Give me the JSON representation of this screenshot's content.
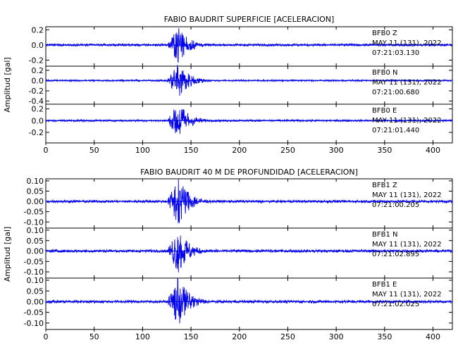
{
  "chart_data": [
    {
      "type": "line",
      "title": "FABIO BAUDRIT SUPERFICIE [ACELERACION]",
      "ylabel": "Amplitud [gal]",
      "xlim": [
        0,
        420
      ],
      "xticks": [
        "0",
        "50",
        "100",
        "150",
        "200",
        "250",
        "300",
        "350",
        "400"
      ],
      "line_color": "#0000ee",
      "traces": [
        {
          "station": "BFB0",
          "component": "Z",
          "date": "MAY 11 (131), 2022",
          "time": "07:21:03.130",
          "ylim": [
            -0.28,
            0.24
          ],
          "yticks": [
            "0.2",
            "0.0",
            "-0.2"
          ],
          "event_onset": 125,
          "event_peak": 137,
          "peak_amplitude": 0.2,
          "noise_amplitude": 0.012
        },
        {
          "station": "BFB0",
          "component": "N",
          "date": "MAY 11 (131), 2022",
          "time": "07:21:00.680",
          "ylim": [
            -0.46,
            0.28
          ],
          "yticks": [
            "0.2",
            "0.0",
            "-0.2",
            "-0.4"
          ],
          "event_onset": 125,
          "event_peak": 137,
          "peak_amplitude": 0.3,
          "noise_amplitude": 0.012
        },
        {
          "station": "BFB0",
          "component": "E",
          "date": "MAY 11 (131), 2022",
          "time": "07:21:01.440",
          "ylim": [
            -0.38,
            0.28
          ],
          "yticks": [
            "0.2",
            "0.0",
            "-0.2"
          ],
          "event_onset": 125,
          "event_peak": 137,
          "peak_amplitude": 0.27,
          "noise_amplitude": 0.012
        }
      ]
    },
    {
      "type": "line",
      "title": "FABIO BAUDRIT 40 M DE PROFUNDIDAD [ACELERACION]",
      "ylabel": "Amplitud [gal]",
      "xlim": [
        0,
        420
      ],
      "xticks": [
        "0",
        "50",
        "100",
        "150",
        "200",
        "250",
        "300",
        "350",
        "400"
      ],
      "line_color": "#0000ee",
      "traces": [
        {
          "station": "BFB1",
          "component": "Z",
          "date": "MAY 11 (131), 2022",
          "time": "07:21:00.205",
          "ylim": [
            -0.13,
            0.11
          ],
          "yticks": [
            "0.10",
            "0.05",
            "0.00",
            "-0.05",
            "-0.10"
          ],
          "event_onset": 125,
          "event_peak": 137,
          "peak_amplitude": 0.1,
          "noise_amplitude": 0.005
        },
        {
          "station": "BFB1",
          "component": "N",
          "date": "MAY 11 (131), 2022",
          "time": "07:21:02.895",
          "ylim": [
            -0.13,
            0.11
          ],
          "yticks": [
            "0.10",
            "0.05",
            "0.00",
            "-0.05",
            "-0.10"
          ],
          "event_onset": 125,
          "event_peak": 137,
          "peak_amplitude": 0.09,
          "noise_amplitude": 0.005
        },
        {
          "station": "BFB1",
          "component": "E",
          "date": "MAY 11 (131), 2022",
          "time": "07:21:02.025",
          "ylim": [
            -0.13,
            0.11
          ],
          "yticks": [
            "0.10",
            "0.05",
            "0.00",
            "-0.05",
            "-0.10"
          ],
          "event_onset": 125,
          "event_peak": 137,
          "peak_amplitude": 0.1,
          "noise_amplitude": 0.005
        }
      ]
    }
  ]
}
